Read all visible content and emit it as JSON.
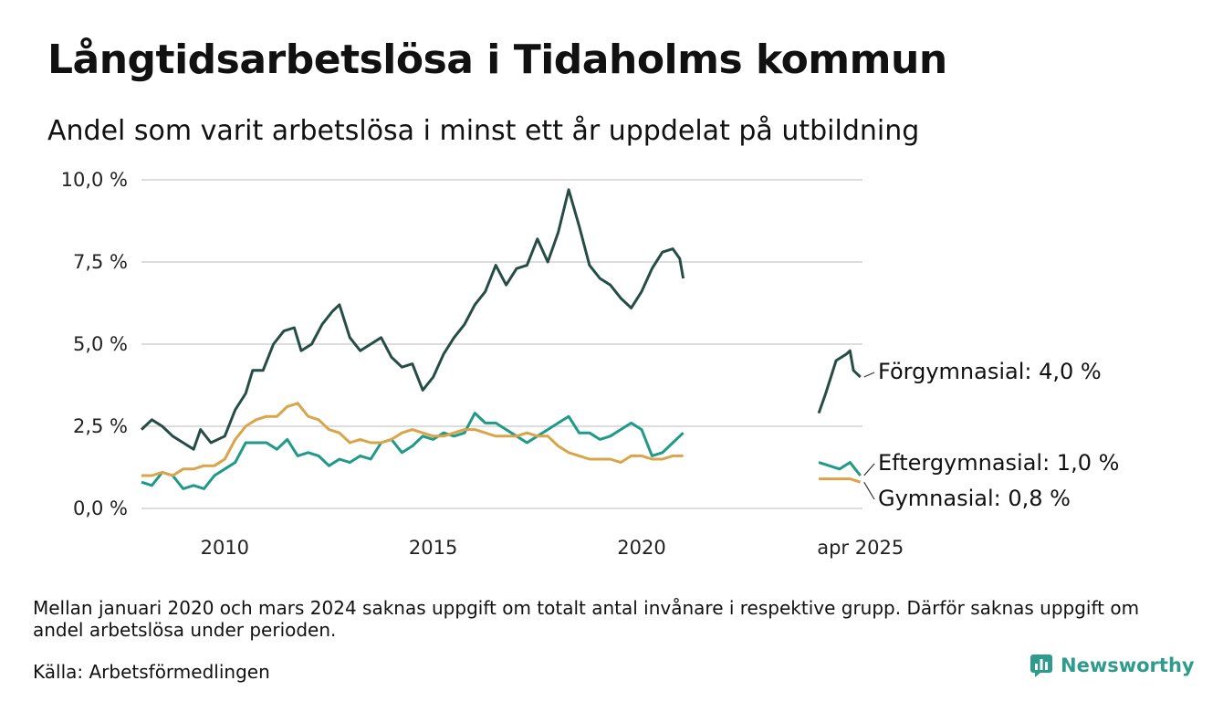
{
  "title": "Långtidsarbetslösa i Tidaholms kommun",
  "subtitle": "Andel som varit arbetslösa i minst ett år uppdelat på utbildning",
  "note": "Mellan januari 2020 och mars 2024 saknas uppgift om totalt antal invånare i respektive grupp. Därför saknas uppgift om andel arbetslösa under perioden.",
  "source": "Källa: Arbetsförmedlingen",
  "brand": {
    "name": "Newsworthy",
    "icon": "bar-chart-logo-icon"
  },
  "colors": {
    "forgymnasial": "#264d45",
    "eftergymnasial": "#1f9a88",
    "gymnasial": "#d9a44a",
    "grid": "#dddddd"
  },
  "chart_data": {
    "type": "line",
    "y_unit": "%",
    "ylim": [
      0,
      10
    ],
    "y_ticks": [
      0,
      2.5,
      5,
      7.5,
      10
    ],
    "y_tick_labels": [
      "0,0 %",
      "2,5 %",
      "5,0 %",
      "7,5 %",
      "10,0 %"
    ],
    "x_tick_labels": [
      "2010",
      "2015",
      "2020",
      "apr 2025"
    ],
    "x_tick_dates": [
      "2010-01",
      "2015-01",
      "2020-01",
      "2025-04"
    ],
    "grid": true,
    "legend": "end-of-line labels",
    "series": [
      {
        "name": "Förgymnasial",
        "key": "forgymnasial",
        "end_label": "Förgymnasial: 4,0 %",
        "segments": [
          [
            [
              "2008-01",
              2.4
            ],
            [
              "2008-04",
              2.7
            ],
            [
              "2008-07",
              2.5
            ],
            [
              "2008-10",
              2.2
            ],
            [
              "2009-01",
              2.0
            ],
            [
              "2009-04",
              1.8
            ],
            [
              "2009-06",
              2.4
            ],
            [
              "2009-09",
              2.0
            ],
            [
              "2010-01",
              2.2
            ],
            [
              "2010-04",
              3.0
            ],
            [
              "2010-07",
              3.5
            ],
            [
              "2010-09",
              4.2
            ],
            [
              "2010-12",
              4.2
            ],
            [
              "2011-03",
              5.0
            ],
            [
              "2011-06",
              5.4
            ],
            [
              "2011-09",
              5.5
            ],
            [
              "2011-11",
              4.8
            ],
            [
              "2012-02",
              5.0
            ],
            [
              "2012-05",
              5.6
            ],
            [
              "2012-08",
              6.0
            ],
            [
              "2012-10",
              6.2
            ],
            [
              "2013-01",
              5.2
            ],
            [
              "2013-04",
              4.8
            ],
            [
              "2013-07",
              5.0
            ],
            [
              "2013-10",
              5.2
            ],
            [
              "2014-01",
              4.6
            ],
            [
              "2014-04",
              4.3
            ],
            [
              "2014-07",
              4.4
            ],
            [
              "2014-10",
              3.6
            ],
            [
              "2015-01",
              4.0
            ],
            [
              "2015-04",
              4.7
            ],
            [
              "2015-07",
              5.2
            ],
            [
              "2015-10",
              5.6
            ],
            [
              "2016-01",
              6.2
            ],
            [
              "2016-04",
              6.6
            ],
            [
              "2016-07",
              7.4
            ],
            [
              "2016-10",
              6.8
            ],
            [
              "2017-01",
              7.3
            ],
            [
              "2017-04",
              7.4
            ],
            [
              "2017-07",
              8.2
            ],
            [
              "2017-10",
              7.5
            ],
            [
              "2018-01",
              8.4
            ],
            [
              "2018-04",
              9.7
            ],
            [
              "2018-07",
              8.6
            ],
            [
              "2018-10",
              7.4
            ],
            [
              "2019-01",
              7.0
            ],
            [
              "2019-04",
              6.8
            ],
            [
              "2019-07",
              6.4
            ],
            [
              "2019-10",
              6.1
            ],
            [
              "2020-01",
              6.6
            ],
            [
              "2020-04",
              7.3
            ],
            [
              "2020-07",
              7.8
            ],
            [
              "2020-10",
              7.9
            ],
            [
              "2020-12",
              7.6
            ],
            [
              "2021-01",
              7.0
            ]
          ],
          [
            [
              "2024-04",
              2.9
            ],
            [
              "2024-06",
              3.5
            ],
            [
              "2024-09",
              4.5
            ],
            [
              "2024-12",
              4.7
            ],
            [
              "2025-01",
              4.8
            ],
            [
              "2025-02",
              4.2
            ],
            [
              "2025-04",
              4.0
            ]
          ]
        ]
      },
      {
        "name": "Eftergymnasial",
        "key": "eftergymnasial",
        "end_label": "Eftergymnasial: 1,0 %",
        "segments": [
          [
            [
              "2008-01",
              0.8
            ],
            [
              "2008-04",
              0.7
            ],
            [
              "2008-07",
              1.1
            ],
            [
              "2008-10",
              1.0
            ],
            [
              "2009-01",
              0.6
            ],
            [
              "2009-04",
              0.7
            ],
            [
              "2009-07",
              0.6
            ],
            [
              "2009-10",
              1.0
            ],
            [
              "2010-01",
              1.2
            ],
            [
              "2010-04",
              1.4
            ],
            [
              "2010-07",
              2.0
            ],
            [
              "2010-10",
              2.0
            ],
            [
              "2011-01",
              2.0
            ],
            [
              "2011-04",
              1.8
            ],
            [
              "2011-07",
              2.1
            ],
            [
              "2011-10",
              1.6
            ],
            [
              "2012-01",
              1.7
            ],
            [
              "2012-04",
              1.6
            ],
            [
              "2012-07",
              1.3
            ],
            [
              "2012-10",
              1.5
            ],
            [
              "2013-01",
              1.4
            ],
            [
              "2013-04",
              1.6
            ],
            [
              "2013-07",
              1.5
            ],
            [
              "2013-10",
              2.0
            ],
            [
              "2014-01",
              2.1
            ],
            [
              "2014-04",
              1.7
            ],
            [
              "2014-07",
              1.9
            ],
            [
              "2014-10",
              2.2
            ],
            [
              "2015-01",
              2.1
            ],
            [
              "2015-04",
              2.3
            ],
            [
              "2015-07",
              2.2
            ],
            [
              "2015-10",
              2.3
            ],
            [
              "2016-01",
              2.9
            ],
            [
              "2016-04",
              2.6
            ],
            [
              "2016-07",
              2.6
            ],
            [
              "2016-10",
              2.4
            ],
            [
              "2017-01",
              2.2
            ],
            [
              "2017-04",
              2.0
            ],
            [
              "2017-07",
              2.2
            ],
            [
              "2017-10",
              2.4
            ],
            [
              "2018-01",
              2.6
            ],
            [
              "2018-04",
              2.8
            ],
            [
              "2018-07",
              2.3
            ],
            [
              "2018-10",
              2.3
            ],
            [
              "2019-01",
              2.1
            ],
            [
              "2019-04",
              2.2
            ],
            [
              "2019-07",
              2.4
            ],
            [
              "2019-10",
              2.6
            ],
            [
              "2020-01",
              2.4
            ],
            [
              "2020-04",
              1.6
            ],
            [
              "2020-07",
              1.7
            ],
            [
              "2020-10",
              2.0
            ],
            [
              "2021-01",
              2.3
            ]
          ],
          [
            [
              "2024-04",
              1.4
            ],
            [
              "2024-07",
              1.3
            ],
            [
              "2024-10",
              1.2
            ],
            [
              "2025-01",
              1.4
            ],
            [
              "2025-04",
              1.0
            ]
          ]
        ]
      },
      {
        "name": "Gymnasial",
        "key": "gymnasial",
        "end_label": "Gymnasial: 0,8 %",
        "segments": [
          [
            [
              "2008-01",
              1.0
            ],
            [
              "2008-04",
              1.0
            ],
            [
              "2008-07",
              1.1
            ],
            [
              "2008-10",
              1.0
            ],
            [
              "2009-01",
              1.2
            ],
            [
              "2009-04",
              1.2
            ],
            [
              "2009-07",
              1.3
            ],
            [
              "2009-10",
              1.3
            ],
            [
              "2010-01",
              1.5
            ],
            [
              "2010-04",
              2.1
            ],
            [
              "2010-07",
              2.5
            ],
            [
              "2010-10",
              2.7
            ],
            [
              "2011-01",
              2.8
            ],
            [
              "2011-04",
              2.8
            ],
            [
              "2011-07",
              3.1
            ],
            [
              "2011-10",
              3.2
            ],
            [
              "2012-01",
              2.8
            ],
            [
              "2012-04",
              2.7
            ],
            [
              "2012-07",
              2.4
            ],
            [
              "2012-10",
              2.3
            ],
            [
              "2013-01",
              2.0
            ],
            [
              "2013-04",
              2.1
            ],
            [
              "2013-07",
              2.0
            ],
            [
              "2013-10",
              2.0
            ],
            [
              "2014-01",
              2.1
            ],
            [
              "2014-04",
              2.3
            ],
            [
              "2014-07",
              2.4
            ],
            [
              "2014-10",
              2.3
            ],
            [
              "2015-01",
              2.2
            ],
            [
              "2015-04",
              2.2
            ],
            [
              "2015-07",
              2.3
            ],
            [
              "2015-10",
              2.4
            ],
            [
              "2016-01",
              2.4
            ],
            [
              "2016-04",
              2.3
            ],
            [
              "2016-07",
              2.2
            ],
            [
              "2016-10",
              2.2
            ],
            [
              "2017-01",
              2.2
            ],
            [
              "2017-04",
              2.3
            ],
            [
              "2017-07",
              2.2
            ],
            [
              "2017-10",
              2.2
            ],
            [
              "2018-01",
              1.9
            ],
            [
              "2018-04",
              1.7
            ],
            [
              "2018-07",
              1.6
            ],
            [
              "2018-10",
              1.5
            ],
            [
              "2019-01",
              1.5
            ],
            [
              "2019-04",
              1.5
            ],
            [
              "2019-07",
              1.4
            ],
            [
              "2019-10",
              1.6
            ],
            [
              "2020-01",
              1.6
            ],
            [
              "2020-04",
              1.5
            ],
            [
              "2020-07",
              1.5
            ],
            [
              "2020-10",
              1.6
            ],
            [
              "2021-01",
              1.6
            ]
          ],
          [
            [
              "2024-04",
              0.9
            ],
            [
              "2024-07",
              0.9
            ],
            [
              "2024-10",
              0.9
            ],
            [
              "2025-01",
              0.9
            ],
            [
              "2025-04",
              0.8
            ]
          ]
        ]
      }
    ]
  }
}
